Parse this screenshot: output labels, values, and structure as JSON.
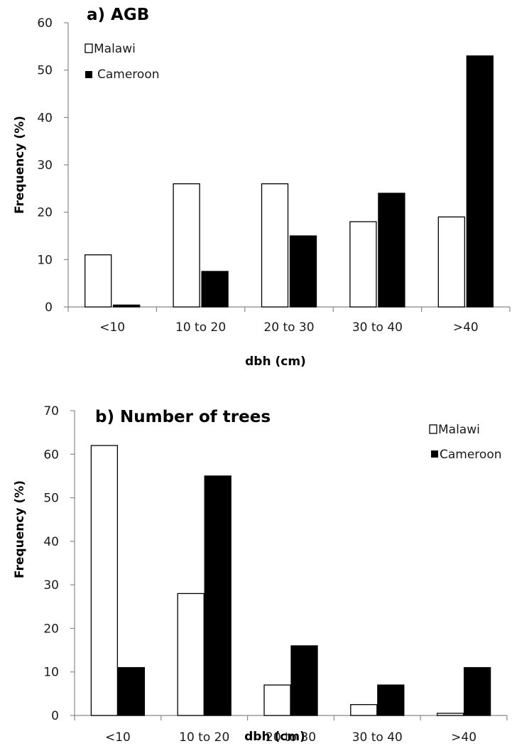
{
  "chart_data": [
    {
      "type": "bar",
      "title": "a) AGB",
      "xlabel": "dbh (cm)",
      "ylabel": "Frequency (%)",
      "categories": [
        "<10",
        "10 to 20",
        "20 to 30",
        "30 to 40",
        ">40"
      ],
      "ylim": [
        0,
        60
      ],
      "yticks": [
        "0",
        "10",
        "20",
        "30",
        "40",
        "50",
        "60"
      ],
      "grid": false,
      "legend_position": "top-left",
      "series": [
        {
          "name": "Malawi",
          "color": "#ffffff",
          "values": [
            11,
            26,
            26,
            18,
            19
          ]
        },
        {
          "name": "Cameroon",
          "color": "#000000",
          "values": [
            0.4,
            7.5,
            15,
            24,
            53
          ]
        }
      ]
    },
    {
      "type": "bar",
      "title": "b) Number of trees",
      "xlabel": "dbh (cm)",
      "ylabel": "Frequency (%)",
      "categories": [
        "<10",
        "10 to 20",
        "20 to 30",
        "30 to 40",
        ">40"
      ],
      "ylim": [
        0,
        70
      ],
      "yticks": [
        "0",
        "10",
        "20",
        "30",
        "40",
        "50",
        "60",
        "70"
      ],
      "grid": false,
      "legend_position": "top-right",
      "series": [
        {
          "name": "Malawi",
          "color": "#ffffff",
          "values": [
            62,
            28,
            7,
            2.5,
            0.5
          ]
        },
        {
          "name": "Cameroon",
          "color": "#000000",
          "values": [
            11,
            55,
            16,
            7,
            11
          ]
        }
      ]
    }
  ]
}
